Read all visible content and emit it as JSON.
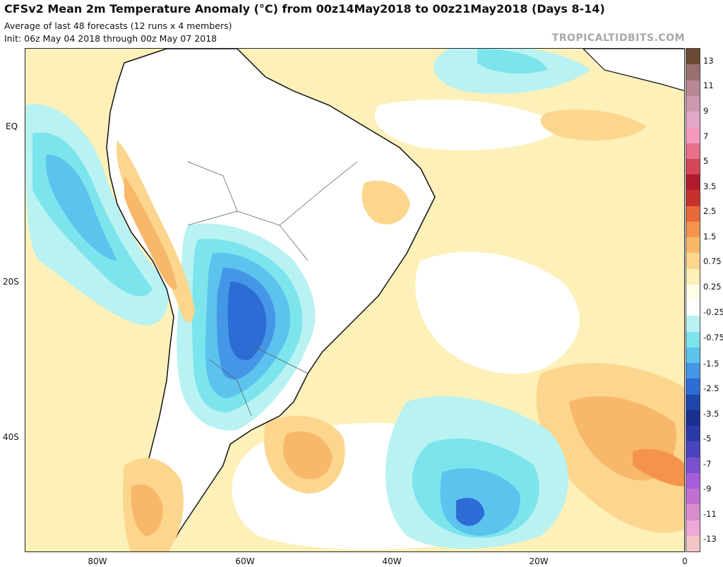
{
  "header": {
    "title": "CFSv2 Mean 2m Temperature Anomaly (°C) from 00z14May2018 to 00z21May2018 (Days 8-14)",
    "subtitle1": "Average of last 48 forecasts (12 runs x 4 members)",
    "subtitle2": "Init: 06z May 04 2018 through 00z May 07 2018",
    "brand": "TROPICALTIDBITS.COM"
  },
  "axes": {
    "lat_labels": [
      "EQ",
      "20S",
      "40S"
    ],
    "lon_labels": [
      "80W",
      "60W",
      "40W",
      "20W",
      "0"
    ]
  },
  "colorbar": {
    "labels": [
      "13",
      "11",
      "9",
      "7",
      "5",
      "3.5",
      "2.5",
      "1.5",
      "0.75",
      "0.25",
      "-0.25",
      "-0.75",
      "-1.5",
      "-2.5",
      "-3.5",
      "-5",
      "-7",
      "-9",
      "-11",
      "-13"
    ],
    "colors": [
      "#6b4a35",
      "#9b6e70",
      "#b78894",
      "#cc98b0",
      "#e2a6c8",
      "#f59abf",
      "#e87088",
      "#d4465a",
      "#b01a2a",
      "#c8302c",
      "#e86a3c",
      "#f4944c",
      "#f8b86a",
      "#fcd68e",
      "#fdf0b8",
      "#fffce8",
      "#ffffff",
      "#b8f2f2",
      "#7ce4ec",
      "#5cc2ee",
      "#4496e6",
      "#2c6cd4",
      "#1e46a8",
      "#1a3090",
      "#2b3aa8",
      "#4a44c0",
      "#7a50d0",
      "#a85ed8",
      "#c070d0",
      "#d88ccc",
      "#eca8d8",
      "#f5c6c6"
    ]
  },
  "palette": {
    "ocean_bg": "#fdf0b8",
    "neutral": "#ffffff",
    "cool1": "#b8f2f2",
    "cool2": "#7ce4ec",
    "cool3": "#5cc2ee",
    "cool4": "#4496e6",
    "cool5": "#2c6cd4",
    "warm1": "#fcd68e",
    "warm2": "#f8b86a",
    "warm3": "#f4944c",
    "warm4": "#e86a3c"
  }
}
